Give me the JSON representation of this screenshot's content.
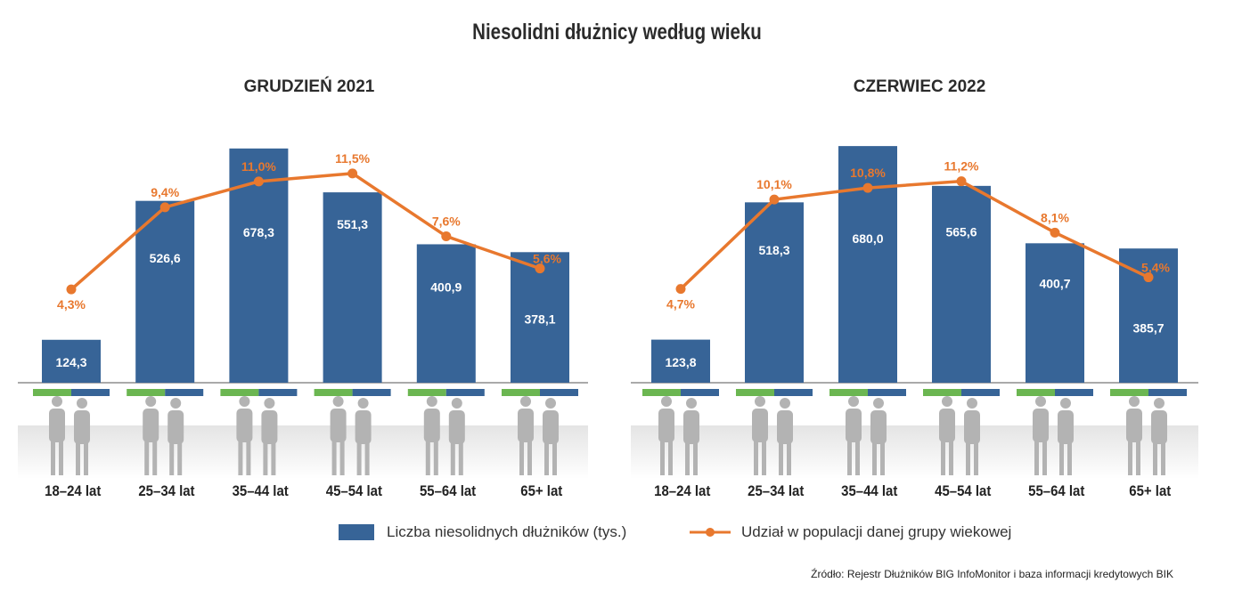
{
  "title": "Niesolidni dłużnicy według wieku",
  "colors": {
    "bar": "#376497",
    "line": "#e8782e",
    "green": "#6bb651",
    "people": "#b3b3b3"
  },
  "legend": {
    "bar_label": "Liczba niesolidnych dłużników (tys.)",
    "line_label": "Udział w populacji danej grupy wiekowej"
  },
  "source": "Źródło: Rejestr Dłużników BIG InfoMonitor i baza informacji kredytowych BIK",
  "chart_data": [
    {
      "type": "bar",
      "title": "GRUDZIEŃ 2021",
      "categories": [
        "18–24 lat",
        "25–34 lat",
        "35–44 lat",
        "45–54 lat",
        "55–64 lat",
        "65+ lat"
      ],
      "series": [
        {
          "name": "Liczba niesolidnych dłużników (tys.)",
          "type": "bar",
          "values": [
            124.3,
            526.6,
            678.3,
            551.3,
            400.9,
            378.1
          ],
          "labels": [
            "124,3",
            "526,6",
            "678,3",
            "551,3",
            "400,9",
            "378,1"
          ]
        },
        {
          "name": "Udział w populacji danej grupy wiekowej",
          "type": "line",
          "values": [
            4.3,
            9.4,
            11.0,
            11.5,
            7.6,
            5.6
          ],
          "labels": [
            "4,3%",
            "9,4%",
            "11,0%",
            "11,5%",
            "7,6%",
            "5,6%"
          ]
        }
      ]
    },
    {
      "type": "bar",
      "title": "CZERWIEC 2022",
      "categories": [
        "18–24 lat",
        "25–34 lat",
        "35–44 lat",
        "45–54 lat",
        "55–64 lat",
        "65+ lat"
      ],
      "series": [
        {
          "name": "Liczba niesolidnych dłużników (tys.)",
          "type": "bar",
          "values": [
            123.8,
            518.3,
            680.0,
            565.6,
            400.7,
            385.7
          ],
          "labels": [
            "123,8",
            "518,3",
            "680,0",
            "565,6",
            "400,7",
            "385,7"
          ]
        },
        {
          "name": "Udział w populacji danej grupy wiekowej",
          "type": "line",
          "values": [
            4.7,
            10.1,
            10.8,
            11.2,
            8.1,
            5.4
          ],
          "labels": [
            "4,7%",
            "10,1%",
            "10,8%",
            "11,2%",
            "8,1%",
            "5,4%"
          ]
        }
      ]
    }
  ]
}
